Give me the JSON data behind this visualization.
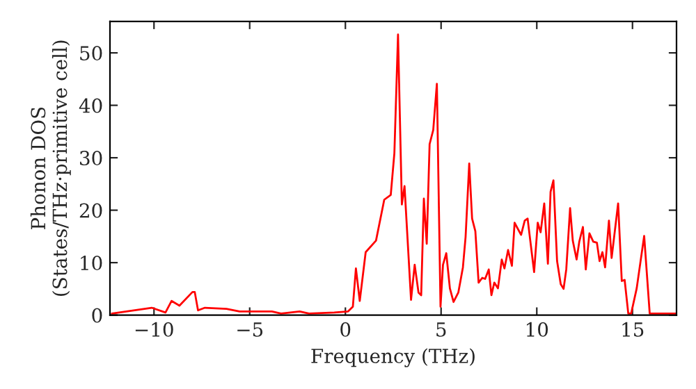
{
  "chart_data": {
    "type": "line",
    "xlabel": "Frequency (THz)",
    "ylabel": "Phonon DOS\n(States/THz·primitive cell)",
    "xlim": [
      -12.3,
      17.3
    ],
    "ylim": [
      0,
      56
    ],
    "xticks": [
      {
        "value": -10,
        "label": "−10"
      },
      {
        "value": -5,
        "label": "−5"
      },
      0,
      5,
      10,
      15
    ],
    "yticks": [
      0,
      10,
      20,
      30,
      40,
      50
    ],
    "grid": false,
    "legend": false,
    "series": [
      {
        "color": "#ff0000",
        "x": [
          -12.2,
          -10.12,
          -9.4,
          -9.08,
          -8.67,
          -7.99,
          -7.87,
          -7.7,
          -7.34,
          -6.21,
          -5.53,
          -3.84,
          -3.36,
          -2.39,
          -1.9,
          -0.58,
          0.14,
          0.39,
          0.55,
          0.75,
          1.06,
          1.6,
          2.03,
          2.37,
          2.56,
          2.75,
          2.95,
          3.09,
          3.43,
          3.62,
          3.82,
          3.96,
          4.1,
          4.25,
          4.4,
          4.59,
          4.78,
          4.97,
          5.1,
          5.27,
          5.46,
          5.65,
          5.9,
          6.14,
          6.28,
          6.47,
          6.62,
          6.79,
          6.96,
          7.15,
          7.3,
          7.49,
          7.63,
          7.78,
          7.97,
          8.17,
          8.31,
          8.5,
          8.7,
          8.84,
          9.18,
          9.37,
          9.52,
          9.86,
          10.05,
          10.2,
          10.39,
          10.58,
          10.72,
          10.87,
          11.06,
          11.25,
          11.4,
          11.54,
          11.74,
          11.88,
          12.08,
          12.22,
          12.41,
          12.56,
          12.75,
          12.95,
          13.14,
          13.28,
          13.43,
          13.57,
          13.77,
          13.91,
          14.25,
          14.44,
          14.59,
          14.78,
          14.93,
          15.22,
          15.61,
          15.9,
          17.3
        ],
        "values": [
          0.3,
          1.4,
          0.5,
          2.7,
          1.8,
          4.4,
          4.4,
          0.9,
          1.4,
          1.2,
          0.7,
          0.7,
          0.3,
          0.7,
          0.3,
          0.5,
          0.7,
          1.6,
          8.9,
          2.7,
          12,
          14.2,
          22,
          22.9,
          30.9,
          53.5,
          21.1,
          24.6,
          2.9,
          9.6,
          4.3,
          3.8,
          22.2,
          13.6,
          32.6,
          35.3,
          44.1,
          1.6,
          9.6,
          11.8,
          5.1,
          2.5,
          4.3,
          9.1,
          14.9,
          28.9,
          18.4,
          16,
          6.2,
          7.1,
          6.9,
          8.7,
          3.8,
          6.2,
          5.1,
          10.6,
          8.9,
          12.4,
          9.4,
          17.6,
          15.3,
          18,
          18.4,
          8.2,
          17.6,
          15.8,
          21.3,
          9.8,
          23.5,
          25.7,
          10.3,
          5.9,
          5,
          8.7,
          20.4,
          14.2,
          10.6,
          14,
          16.8,
          8.7,
          15.6,
          14,
          13.8,
          10.3,
          12,
          9.1,
          18,
          10.9,
          21.3,
          6.5,
          6.7,
          0.3,
          0.3,
          5.1,
          15.1,
          0.3,
          0.3
        ]
      }
    ]
  }
}
